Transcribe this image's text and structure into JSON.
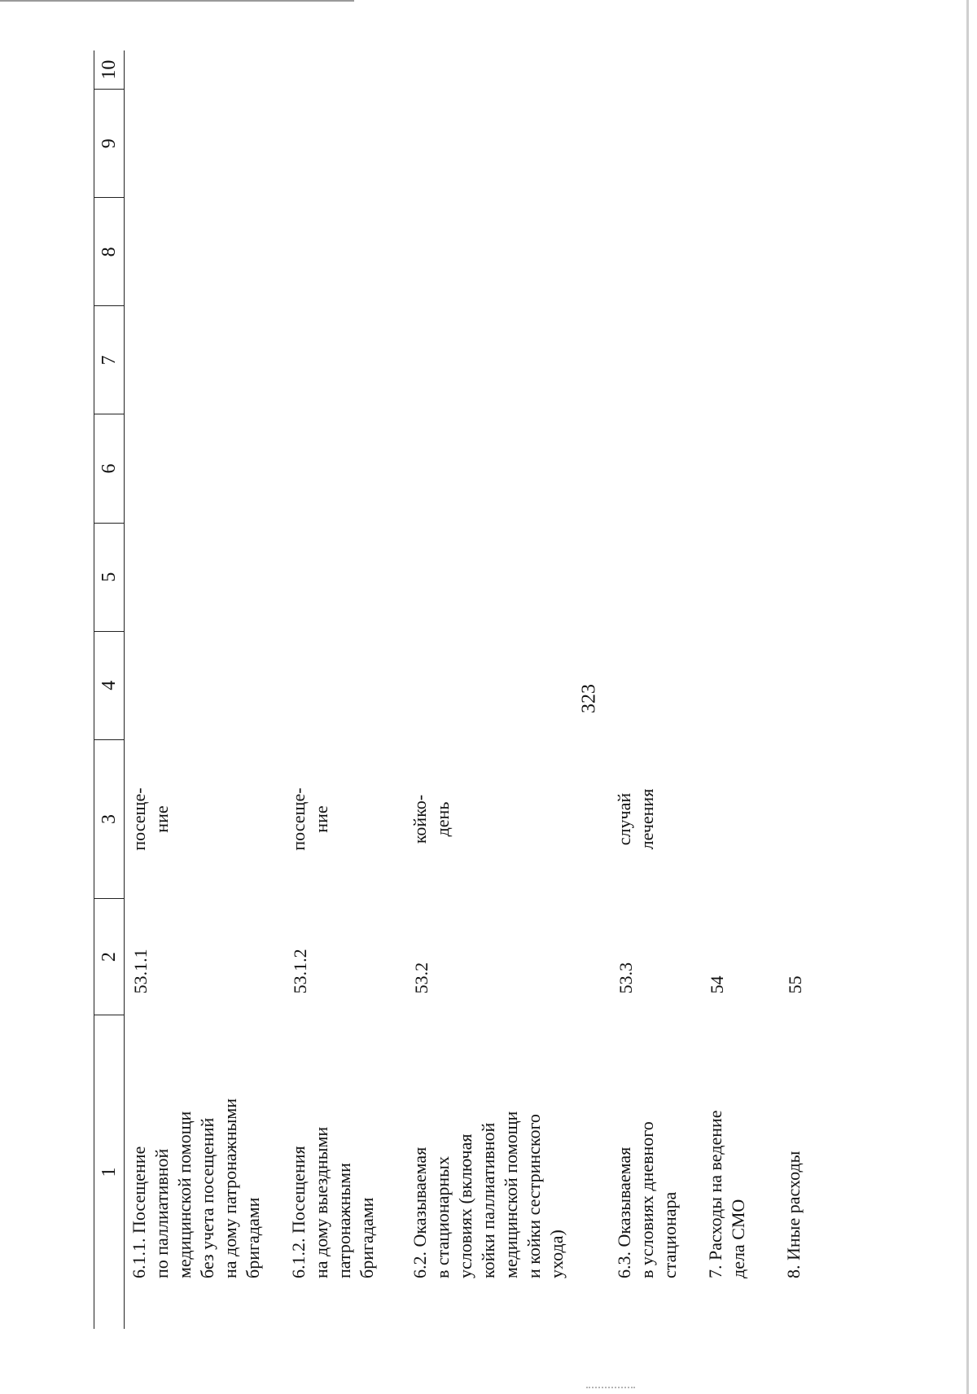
{
  "page_number": "323",
  "table": {
    "header": [
      "1",
      "2",
      "3",
      "4",
      "5",
      "6",
      "7",
      "8",
      "9",
      "10"
    ],
    "rows": [
      {
        "label": "6.1.1. Посещение\nпо паллиативной\nмедицинской помощи\nбез учета посещений\nна дому патронажными\nбригадами",
        "code": "53.1.1",
        "unit": "посеще-\nние"
      },
      {
        "label": "6.1.2. Посещения\nна дому выездными\nпатронажными\nбригадами",
        "code": "53.1.2",
        "unit": "посеще-\nние"
      },
      {
        "label": "6.2. Оказываемая\nв стационарных\nусловиях (включая\nкойки паллиативной\nмедицинской помощи\nи койки сестринского\nухода)",
        "code": "53.2",
        "unit": "койко-\nдень"
      },
      {
        "label": "6.3. Оказываемая\nв условиях дневного\nстационара",
        "code": "53.3",
        "unit": "случай\nлечения"
      },
      {
        "label": "7. Расходы на ведение\nдела СМО",
        "code": "54",
        "unit": ""
      },
      {
        "label": "8. Иные расходы",
        "code": "55",
        "unit": ""
      }
    ]
  }
}
